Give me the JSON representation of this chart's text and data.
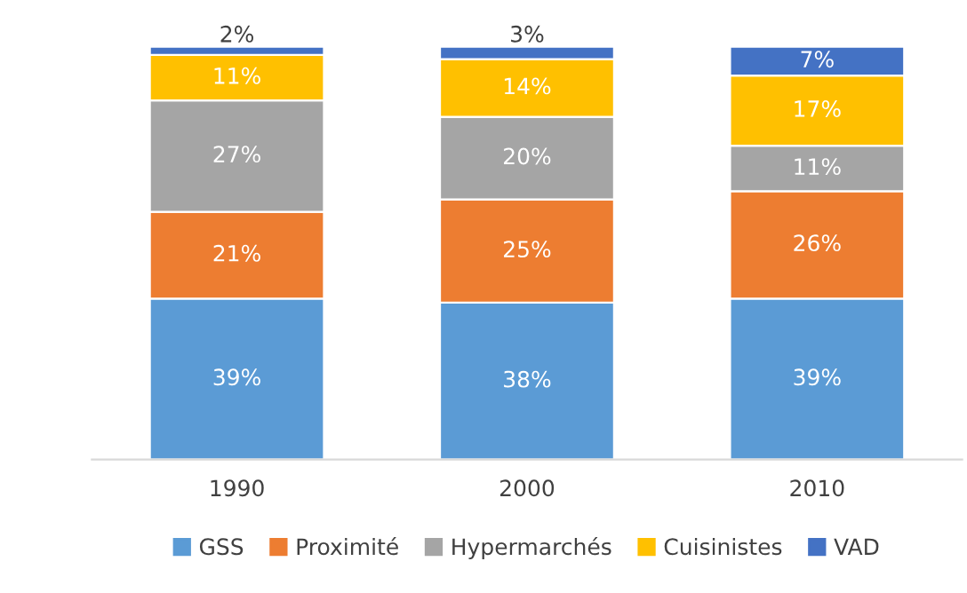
{
  "chart_data": {
    "type": "bar",
    "stacked": true,
    "legend": "bottom",
    "grid": false,
    "categories": [
      "1990",
      "2000",
      "2010"
    ],
    "series": [
      {
        "name": "GSS",
        "color": "#5b9bd5",
        "values": [
          39,
          38,
          39
        ],
        "value_labels": [
          "39%",
          "38%",
          "39%"
        ]
      },
      {
        "name": "Proximité",
        "color": "#ed7d31",
        "values": [
          21,
          25,
          26
        ],
        "value_labels": [
          "21%",
          "25%",
          "26%"
        ]
      },
      {
        "name": "Hypermarchés",
        "color": "#a5a5a5",
        "values": [
          27,
          20,
          11
        ],
        "value_labels": [
          "27%",
          "20%",
          "11%"
        ]
      },
      {
        "name": "Cuisinistes",
        "color": "#ffc000",
        "values": [
          11,
          14,
          17
        ],
        "value_labels": [
          "11%",
          "14%",
          "17%"
        ]
      },
      {
        "name": "VAD",
        "color": "#4472c4",
        "values": [
          2,
          3,
          7
        ],
        "value_labels": [
          "2%",
          "3%",
          "7%"
        ]
      }
    ]
  }
}
